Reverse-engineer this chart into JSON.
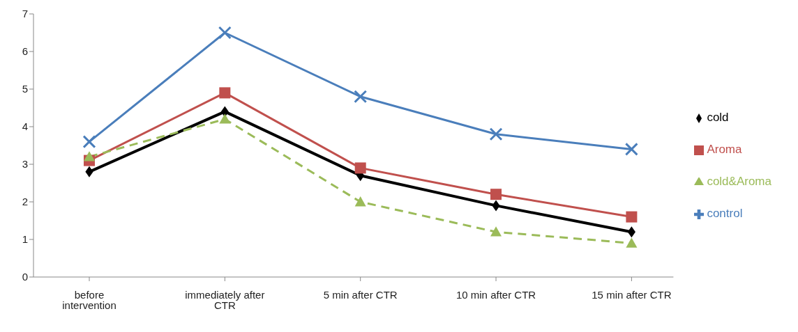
{
  "chart_data": {
    "type": "line",
    "categories": [
      "before intervention",
      "immediately after  CTR",
      "5 min after  CTR",
      "10 min  after CTR",
      "15 min  after CTR"
    ],
    "series": [
      {
        "name": "cold",
        "color": "#000000",
        "marker": "diamond",
        "line_style": "solid",
        "values": [
          2.8,
          4.4,
          2.7,
          1.9,
          1.2
        ]
      },
      {
        "name": "Aroma",
        "color": "#c0504d",
        "marker": "square",
        "line_style": "solid",
        "values": [
          3.1,
          4.9,
          2.9,
          2.2,
          1.6
        ]
      },
      {
        "name": "cold&Aroma",
        "color": "#9bbb59",
        "marker": "triangle",
        "line_style": "dashed",
        "values": [
          3.2,
          4.2,
          2.0,
          1.2,
          0.9
        ]
      },
      {
        "name": "control",
        "color": "#4a7ebb",
        "marker": "cross",
        "line_style": "solid",
        "values": [
          3.6,
          6.5,
          4.8,
          3.8,
          3.4
        ]
      }
    ],
    "ylim": [
      0,
      7
    ],
    "yticks": [
      0,
      1,
      2,
      3,
      4,
      5,
      6,
      7
    ],
    "grid": false,
    "legend": "right"
  }
}
